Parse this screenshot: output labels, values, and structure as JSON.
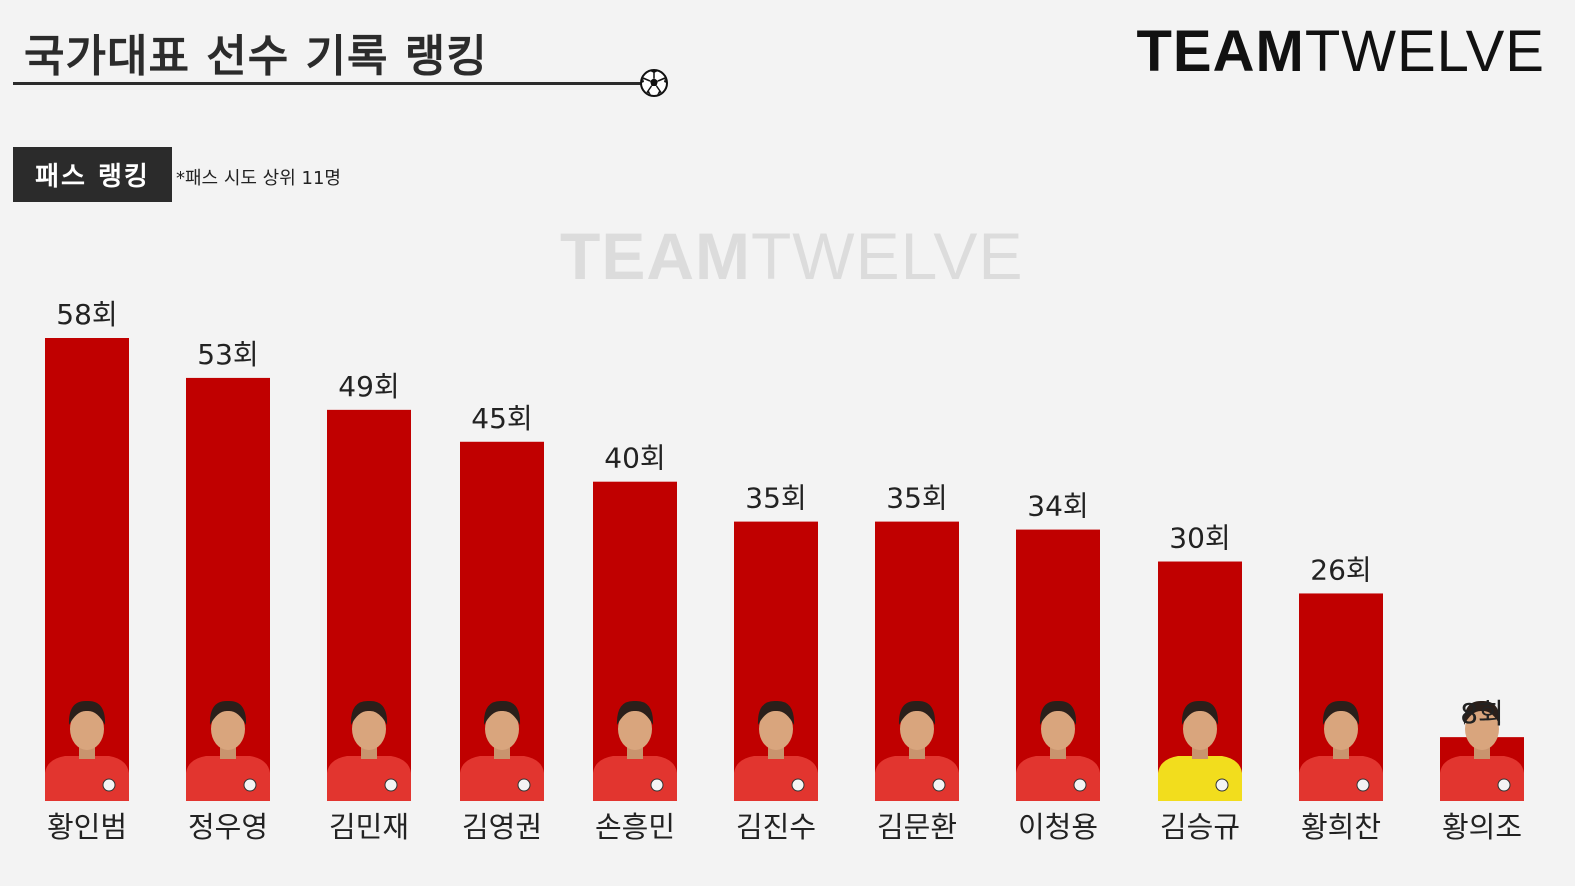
{
  "header": {
    "title": "국가대표 선수 기록 랭킹",
    "brand_bold": "TEAM",
    "brand_light": "TWELVE"
  },
  "section": {
    "tag": "패스 랭킹",
    "note": "*패스 시도 상위 11명"
  },
  "watermark": {
    "bold": "TEAM",
    "light": "TWELVE"
  },
  "colors": {
    "bar": "#c00000",
    "background": "#f3f3f3",
    "jersey_field": "#e2352f",
    "jersey_keeper": "#f2dd1d"
  },
  "chart_data": {
    "type": "bar",
    "unit_suffix": "회",
    "categories": [
      "황인범",
      "정우영",
      "김민재",
      "김영권",
      "손흥민",
      "김진수",
      "김문환",
      "이청용",
      "김승규",
      "황희찬",
      "황의조"
    ],
    "values": [
      58,
      53,
      49,
      45,
      40,
      35,
      35,
      34,
      30,
      26,
      8
    ],
    "value_labels": [
      "58회",
      "53회",
      "49회",
      "45회",
      "40회",
      "35회",
      "35회",
      "34회",
      "30회",
      "26회",
      "8회"
    ],
    "title": "",
    "xlabel": "",
    "ylabel": "",
    "grid": false,
    "legend": "none",
    "jerseys": [
      "field",
      "field",
      "field",
      "field",
      "field",
      "field",
      "field",
      "field",
      "keeper",
      "field",
      "field"
    ]
  }
}
